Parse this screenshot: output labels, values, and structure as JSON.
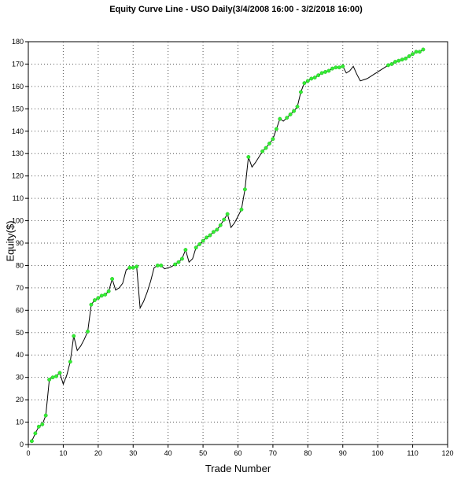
{
  "chart_data": {
    "type": "line",
    "title": "Equity Curve Line - USO Daily(3/4/2008 16:00 - 3/2/2018 16:00)",
    "xlabel": "Trade Number",
    "ylabel": "Equity($)",
    "xlim": [
      0,
      120
    ],
    "ylim": [
      0,
      180
    ],
    "xticks": [
      0,
      10,
      20,
      30,
      40,
      50,
      60,
      70,
      80,
      90,
      100,
      110,
      120
    ],
    "yticks": [
      0,
      10,
      20,
      30,
      40,
      50,
      60,
      70,
      80,
      90,
      100,
      110,
      120,
      130,
      140,
      150,
      160,
      170,
      180
    ],
    "grid": true,
    "line_color": "#000000",
    "marker_color": "#33ee33",
    "series": [
      {
        "x": [
          1,
          2,
          3,
          4,
          5,
          6,
          7,
          8,
          9,
          10,
          11,
          12,
          13,
          14,
          15,
          16,
          17,
          18,
          19,
          20,
          21,
          22,
          23,
          24,
          25,
          26,
          27,
          28,
          29,
          30,
          31,
          32,
          33,
          34,
          35,
          36,
          37,
          38,
          39,
          40,
          41,
          42,
          43,
          44,
          45,
          46,
          47,
          48,
          49,
          50,
          51,
          52,
          53,
          54,
          55,
          56,
          57,
          58,
          59,
          60,
          61,
          62,
          63,
          64,
          65,
          66,
          67,
          68,
          69,
          70,
          71,
          72,
          73,
          74,
          75,
          76,
          77,
          78,
          79,
          80,
          81,
          82,
          83,
          84,
          85,
          86,
          87,
          88,
          89,
          90,
          91,
          92,
          93,
          94,
          95,
          96,
          97,
          98,
          99,
          100,
          101,
          102,
          103,
          104,
          105,
          106,
          107,
          108,
          109,
          110,
          111,
          112,
          113
        ],
        "y": [
          1.5,
          5,
          8,
          9,
          13,
          29,
          30,
          30.5,
          32,
          27,
          31,
          37,
          48.5,
          42,
          44,
          47,
          50.5,
          62.5,
          64.5,
          65.5,
          66.5,
          67,
          68.5,
          74,
          69,
          70,
          72,
          78,
          79,
          79,
          79.5,
          61,
          64,
          68,
          73,
          79,
          80,
          80,
          78.5,
          79,
          79.5,
          80.5,
          81.5,
          83,
          87,
          81.5,
          83,
          88,
          89.5,
          91,
          92.5,
          93.5,
          95,
          96,
          98,
          100.5,
          103,
          97,
          99,
          102,
          105,
          114,
          128.5,
          124,
          126,
          128.5,
          131,
          132.5,
          134.5,
          136.5,
          141,
          145.5,
          144.5,
          146,
          147.5,
          149,
          151,
          157.5,
          161.5,
          162.5,
          163.5,
          164,
          165,
          166,
          166.5,
          167,
          168,
          168.5,
          168.5,
          169,
          166,
          167,
          169,
          165.5,
          162.5,
          163,
          163.5,
          164.5,
          165.5,
          166.5,
          167.5,
          168.5,
          169.5,
          170,
          171,
          171.5,
          172,
          172.5,
          173.5,
          174.5,
          175.5,
          175.5,
          176.5
        ],
        "markers": [
          1,
          2,
          3,
          4,
          5,
          6,
          7,
          8,
          9,
          12,
          13,
          17,
          18,
          19,
          20,
          21,
          22,
          23,
          24,
          29,
          30,
          31,
          37,
          38,
          42,
          43,
          44,
          45,
          48,
          49,
          50,
          51,
          52,
          53,
          54,
          55,
          56,
          57,
          61,
          62,
          63,
          67,
          68,
          69,
          70,
          71,
          72,
          74,
          75,
          76,
          77,
          78,
          79,
          80,
          81,
          82,
          83,
          84,
          85,
          86,
          87,
          88,
          89,
          90,
          103,
          104,
          105,
          106,
          107,
          108,
          109,
          110,
          111,
          112,
          113
        ]
      }
    ]
  }
}
